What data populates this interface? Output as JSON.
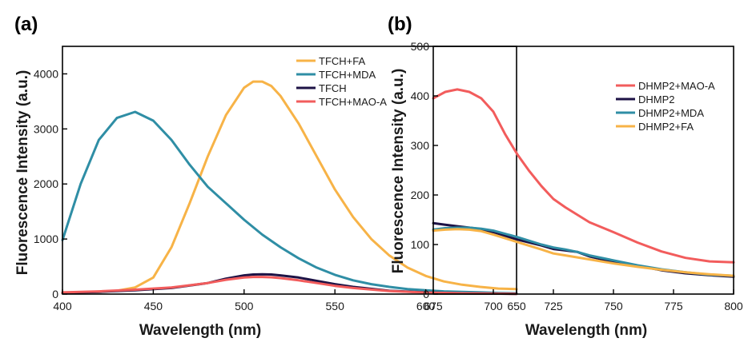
{
  "chart_data": [
    {
      "panel_label": "(a)",
      "type": "line",
      "title": "",
      "xlabel": "Wavelength (nm)",
      "ylabel": "Fluorescence Intensity (a.u.)",
      "xlim": [
        400,
        650
      ],
      "ylim": [
        0,
        4500
      ],
      "xticks": [
        400,
        450,
        500,
        550,
        600,
        650
      ],
      "yticks": [
        0,
        1000,
        2000,
        3000,
        4000
      ],
      "grid": false,
      "legend_position": "top-right",
      "series": [
        {
          "name": "TFCH+FA",
          "color": "#f7b347",
          "x": [
            400,
            420,
            430,
            440,
            450,
            460,
            470,
            480,
            490,
            500,
            505,
            510,
            515,
            520,
            530,
            540,
            550,
            560,
            570,
            580,
            590,
            600,
            610,
            620,
            630,
            640,
            650
          ],
          "y": [
            20,
            40,
            60,
            120,
            300,
            850,
            1650,
            2500,
            3250,
            3750,
            3860,
            3860,
            3780,
            3600,
            3100,
            2500,
            1900,
            1400,
            1000,
            700,
            480,
            330,
            230,
            170,
            130,
            100,
            90
          ]
        },
        {
          "name": "TFCH+MDA",
          "color": "#2f8ea5",
          "x": [
            400,
            410,
            420,
            430,
            440,
            450,
            460,
            470,
            480,
            490,
            500,
            510,
            520,
            530,
            540,
            550,
            560,
            570,
            580,
            590,
            600,
            610,
            620,
            630,
            640,
            650
          ],
          "y": [
            980,
            2000,
            2800,
            3200,
            3310,
            3150,
            2800,
            2350,
            1950,
            1650,
            1350,
            1080,
            850,
            650,
            480,
            350,
            250,
            180,
            130,
            90,
            70,
            50,
            40,
            30,
            20,
            15
          ]
        },
        {
          "name": "TFCH",
          "color": "#1d1245",
          "x": [
            400,
            420,
            440,
            460,
            480,
            490,
            500,
            505,
            510,
            515,
            520,
            530,
            540,
            550,
            560,
            580,
            600,
            620,
            650
          ],
          "y": [
            20,
            40,
            70,
            110,
            200,
            280,
            340,
            355,
            360,
            355,
            340,
            300,
            240,
            180,
            130,
            60,
            30,
            15,
            5
          ]
        },
        {
          "name": "TFCH+MAO-A",
          "color": "#f25c5c",
          "x": [
            400,
            420,
            440,
            460,
            480,
            490,
            500,
            505,
            510,
            515,
            520,
            530,
            540,
            550,
            560,
            580,
            600,
            620,
            650
          ],
          "y": [
            30,
            50,
            80,
            120,
            200,
            260,
            300,
            310,
            310,
            305,
            290,
            250,
            200,
            150,
            110,
            55,
            28,
            15,
            5
          ]
        }
      ]
    },
    {
      "panel_label": "(b)",
      "type": "line",
      "title": "",
      "xlabel": "Wavelength (nm)",
      "ylabel": "Fluorescence Intensity (a.u.)",
      "xlim": [
        675,
        800
      ],
      "ylim": [
        0,
        500
      ],
      "xticks": [
        675,
        700,
        725,
        750,
        775,
        800
      ],
      "yticks": [
        0,
        100,
        200,
        300,
        400,
        500
      ],
      "grid": false,
      "legend_position": "top-right",
      "series": [
        {
          "name": "DHMP2+MAO-A",
          "color": "#f25c5c",
          "x": [
            675,
            680,
            685,
            690,
            695,
            700,
            705,
            710,
            715,
            720,
            725,
            730,
            740,
            750,
            760,
            770,
            780,
            790,
            800
          ],
          "y": [
            395,
            408,
            413,
            408,
            395,
            368,
            322,
            282,
            248,
            218,
            192,
            175,
            145,
            125,
            104,
            86,
            73,
            66,
            64
          ]
        },
        {
          "name": "DHMP2",
          "color": "#1d1245",
          "x": [
            675,
            680,
            685,
            690,
            695,
            700,
            710,
            720,
            725,
            730,
            735,
            740,
            750,
            760,
            770,
            780,
            790,
            800
          ],
          "y": [
            143,
            140,
            137,
            134,
            131,
            125,
            110,
            98,
            91,
            88,
            85,
            76,
            65,
            57,
            48,
            42,
            38,
            35
          ]
        },
        {
          "name": "DHMP2+MDA",
          "color": "#2f8ea5",
          "x": [
            675,
            680,
            685,
            690,
            695,
            700,
            710,
            720,
            725,
            730,
            735,
            740,
            750,
            760,
            770,
            780,
            790,
            800
          ],
          "y": [
            130,
            133,
            134,
            134,
            132,
            128,
            115,
            100,
            94,
            90,
            85,
            78,
            68,
            58,
            50,
            44,
            39,
            37
          ]
        },
        {
          "name": "DHMP2+FA",
          "color": "#f7b347",
          "x": [
            675,
            680,
            685,
            690,
            695,
            700,
            710,
            720,
            725,
            730,
            735,
            740,
            750,
            760,
            770,
            780,
            790,
            800
          ],
          "y": [
            128,
            130,
            131,
            130,
            127,
            120,
            105,
            90,
            82,
            78,
            74,
            70,
            62,
            55,
            49,
            44,
            40,
            37
          ]
        }
      ]
    }
  ]
}
